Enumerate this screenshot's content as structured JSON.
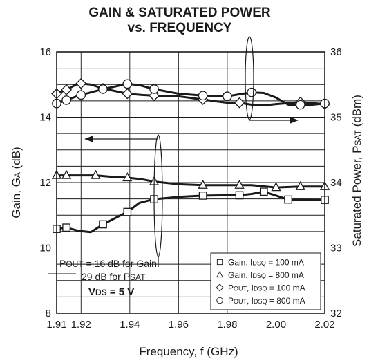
{
  "chart_data": {
    "type": "line",
    "title": [
      "GAIN & SATURATED POWER",
      "vs. FREQUENCY"
    ],
    "xlabel": "Frequency, f (GHz)",
    "ylabel_left": {
      "main": "Gain, G",
      "sub": "A",
      "unit": " (dB)"
    },
    "ylabel_right": {
      "main": "Saturated Power, P",
      "sub": "SAT",
      "unit": " (dBm)"
    },
    "xlim": [
      1.91,
      2.02
    ],
    "ylim_left": [
      8,
      16
    ],
    "ylim_right": [
      32,
      36
    ],
    "x_ticks": [
      "1.91",
      "1.92",
      "1.94",
      "1.96",
      "1.98",
      "2.00",
      "2.02"
    ],
    "x_tick_values": [
      1.91,
      1.92,
      1.94,
      1.96,
      1.98,
      2.0,
      2.02
    ],
    "y_ticks_left": [
      "8",
      "10",
      "12",
      "14",
      "16"
    ],
    "y_tick_values_left": [
      8,
      10,
      12,
      14,
      16
    ],
    "y_ticks_right": [
      "32",
      "33",
      "34",
      "35",
      "36"
    ],
    "y_tick_values_right": [
      32,
      33,
      34,
      35,
      36
    ],
    "grid": true,
    "legend_position": "bottom-right",
    "series": [
      {
        "name": {
          "a": "Gain, I",
          "sub": "DSQ",
          "b": " = 100 mA"
        },
        "axis": "left",
        "marker": "square",
        "x": [
          1.91,
          1.914,
          1.919,
          1.924,
          1.929,
          1.939,
          1.944,
          1.95,
          1.96,
          1.97,
          1.98,
          1.985,
          1.99,
          1.995,
          2.005,
          2.015,
          2.02
        ],
        "y": [
          10.58,
          10.62,
          10.52,
          10.48,
          10.72,
          11.1,
          11.38,
          11.49,
          11.56,
          11.6,
          11.61,
          11.61,
          11.65,
          11.72,
          11.48,
          11.47,
          11.47
        ],
        "marker_x": [
          1.91,
          1.914,
          1.929,
          1.939,
          1.95,
          1.97,
          1.985,
          1.995,
          2.005,
          2.02
        ]
      },
      {
        "name": {
          "a": "Gain, I",
          "sub": "DSQ",
          "b": " = 800 mA"
        },
        "axis": "left",
        "marker": "triangle",
        "x": [
          1.91,
          1.914,
          1.92,
          1.926,
          1.932,
          1.939,
          1.945,
          1.95,
          1.96,
          1.97,
          1.98,
          1.99,
          2.0,
          2.01,
          2.02
        ],
        "y": [
          12.22,
          12.22,
          12.22,
          12.22,
          12.18,
          12.15,
          12.1,
          12.03,
          11.95,
          11.92,
          11.92,
          11.92,
          11.85,
          11.88,
          11.88
        ],
        "marker_x": [
          1.91,
          1.914,
          1.926,
          1.939,
          1.95,
          1.97,
          1.985,
          2.0,
          2.01,
          2.02
        ]
      },
      {
        "name": {
          "a": "P",
          "sub": "OUT",
          "b": ", I",
          "sub2": "DSQ",
          "c": " = 100 mA"
        },
        "axis": "right",
        "marker": "diamond",
        "x": [
          1.91,
          1.914,
          1.919,
          1.924,
          1.929,
          1.939,
          1.945,
          1.95,
          1.96,
          1.97,
          1.98,
          1.985,
          1.99,
          1.995,
          2.0,
          2.01,
          2.02
        ],
        "y": [
          35.36,
          35.42,
          35.52,
          35.5,
          35.44,
          35.36,
          35.34,
          35.33,
          35.32,
          35.27,
          35.22,
          35.22,
          35.19,
          35.18,
          35.2,
          35.23,
          35.2
        ],
        "marker_x": [
          1.91,
          1.914,
          1.92,
          1.929,
          1.939,
          1.95,
          1.97,
          1.985,
          2.01,
          2.02
        ]
      },
      {
        "name": {
          "a": "P",
          "sub": "OUT",
          "b": ", I",
          "sub2": "DSQ",
          "c": " = 800 mA"
        },
        "axis": "right",
        "marker": "circle",
        "x": [
          1.91,
          1.914,
          1.919,
          1.924,
          1.929,
          1.939,
          1.944,
          1.95,
          1.96,
          1.97,
          1.98,
          1.985,
          1.99,
          1.995,
          2.0,
          2.005,
          2.015,
          2.02
        ],
        "y": [
          35.21,
          35.26,
          35.33,
          35.38,
          35.43,
          35.51,
          35.49,
          35.43,
          35.36,
          35.33,
          35.32,
          35.35,
          35.38,
          35.37,
          35.3,
          35.19,
          35.19,
          35.21
        ],
        "marker_x": [
          1.91,
          1.914,
          1.92,
          1.929,
          1.939,
          1.95,
          1.97,
          1.98,
          1.99,
          2.01,
          2.02
        ]
      }
    ],
    "annotations": {
      "pout_line1": {
        "a": "P",
        "sub": "OUT",
        "b": " = 16 dB for Gain"
      },
      "pout_line2": {
        "a": "29 dB for P",
        "sub": "SAT"
      },
      "vds": {
        "a": "V",
        "sub": "DS",
        "b": " = 5 V"
      }
    }
  },
  "colors": {
    "ink": "#1a1a1a",
    "grid": "#1a1a1a",
    "background": "#ffffff"
  }
}
